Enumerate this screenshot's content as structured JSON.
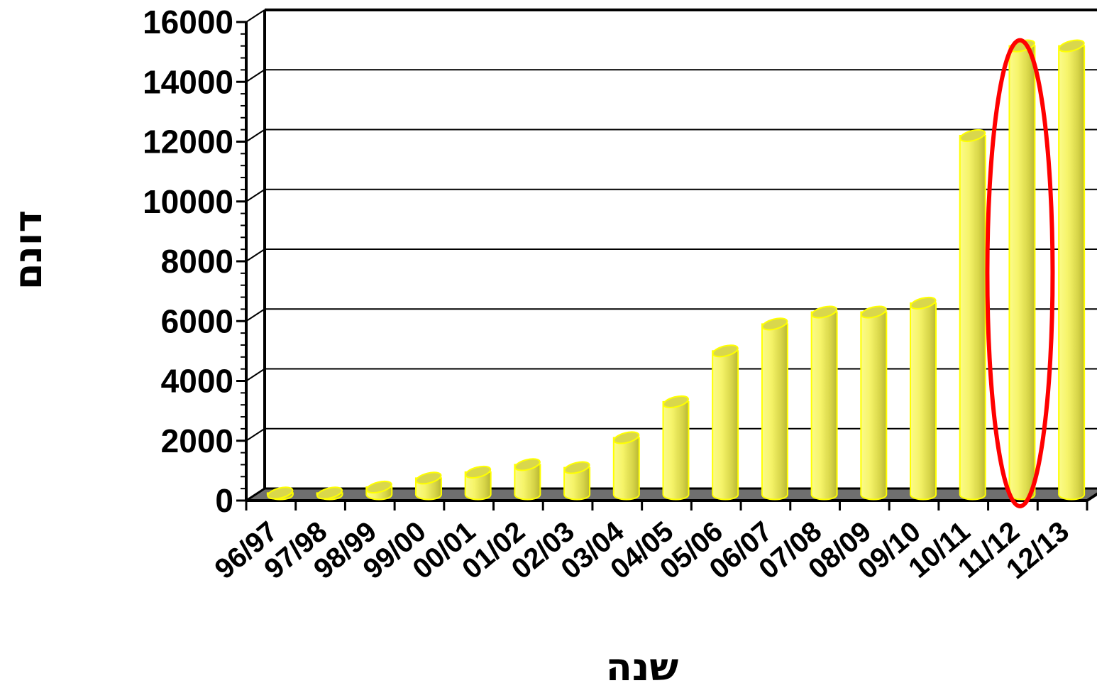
{
  "chart_data": {
    "type": "bar",
    "style": "3d-cylinder",
    "bar_color": "#f4f25a",
    "bar_edge_color": "#ffff00",
    "floor_color": "#6f6f6f",
    "highlight_color": "#ff0000",
    "categories": [
      "96/97",
      "97/98",
      "98/99",
      "99/00",
      "00/01",
      "01/02",
      "02/03",
      "03/04",
      "04/05",
      "05/06",
      "06/07",
      "07/08",
      "08/09",
      "09/10",
      "10/11",
      "11/12",
      "12/13"
    ],
    "values": [
      50,
      50,
      250,
      550,
      750,
      1000,
      900,
      1900,
      3100,
      4800,
      5700,
      6100,
      6100,
      6400,
      12000,
      15000,
      15000
    ],
    "ylim": [
      0,
      16000
    ],
    "yticks": [
      "0",
      "2000",
      "4000",
      "6000",
      "8000",
      "10000",
      "12000",
      "14000",
      "16000"
    ],
    "ylabel": "דונם",
    "xlabel": "שנה",
    "grid": true,
    "highlighted_category": "11/12"
  }
}
